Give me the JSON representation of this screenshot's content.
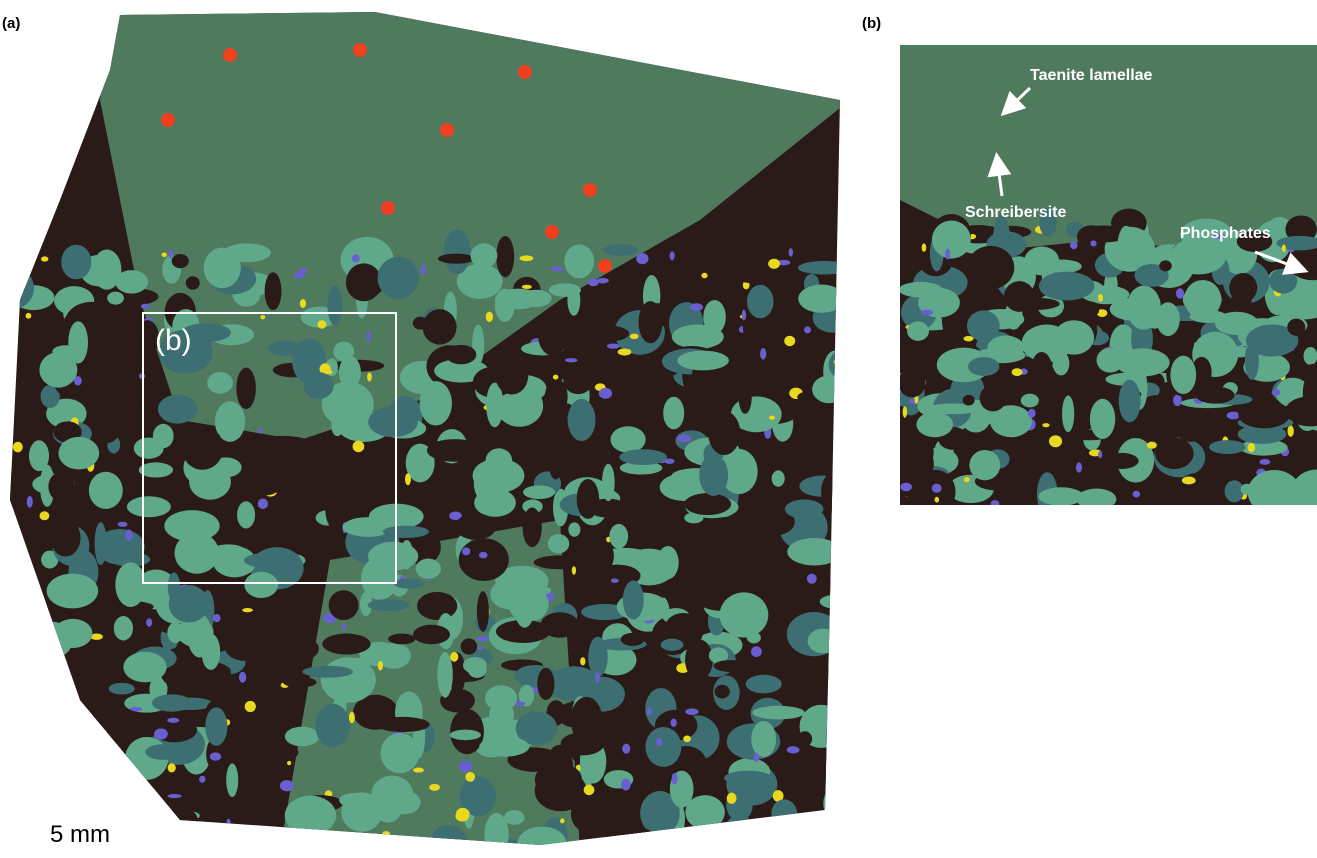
{
  "panels": [
    {
      "label": "(a)",
      "inset_label": "(b)",
      "scale_label": "5 mm"
    },
    {
      "label": "(b)",
      "annotations": [
        "Taenite lamellae",
        "Schreibersite",
        "Phosphates"
      ]
    }
  ]
}
